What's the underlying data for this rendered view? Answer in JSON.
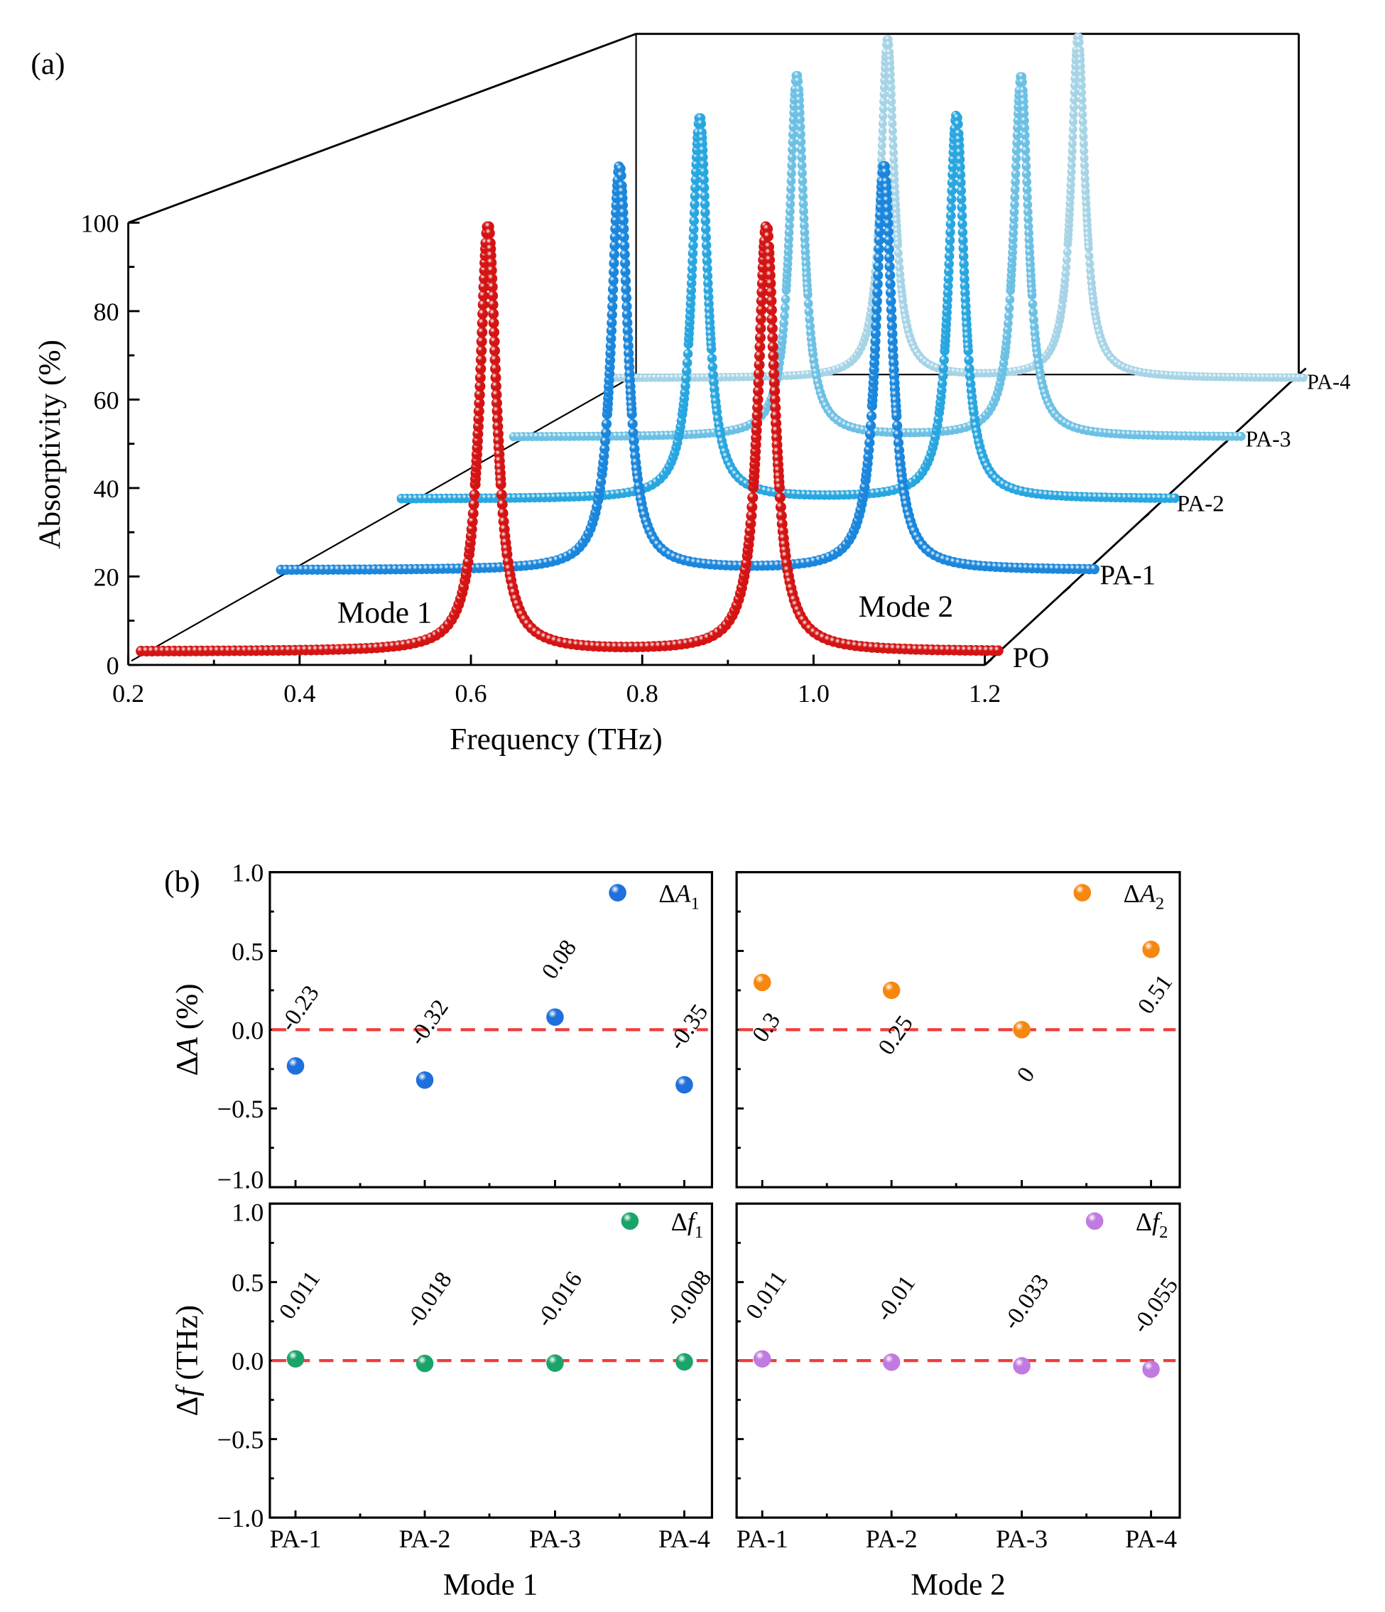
{
  "chart_data": [
    {
      "type": "line",
      "panel_label": "(a)",
      "title": "",
      "xlabel": "Frequency (THz)",
      "ylabel": "Absorptivity (%)",
      "xlim": [
        0.2,
        1.2
      ],
      "ylim": [
        0,
        100
      ],
      "xticks": [
        "0.2",
        "0.4",
        "0.6",
        "0.8",
        "1.0",
        "1.2"
      ],
      "yticks": [
        "0",
        "20",
        "40",
        "60",
        "80",
        "100"
      ],
      "annotations": [
        "Mode 1",
        "Mode 2"
      ],
      "freq_range": [
        0.215,
        1.22
      ],
      "linewidth_thz": 0.012,
      "baseline_percent": 3,
      "series": [
        {
          "name": "PO",
          "color": "#d41414",
          "peaks": [
            {
              "f": 0.62,
              "A": 99.6
            },
            {
              "f": 0.945,
              "A": 99.4
            }
          ]
        },
        {
          "name": "PA-1",
          "color": "#1a86dc",
          "peaks": [
            {
              "f": 0.631,
              "A": 99.37
            },
            {
              "f": 0.956,
              "A": 99.7
            }
          ]
        },
        {
          "name": "PA-2",
          "color": "#28a6e0",
          "peaks": [
            {
              "f": 0.602,
              "A": 99.28
            },
            {
              "f": 0.935,
              "A": 99.65
            }
          ]
        },
        {
          "name": "PA-3",
          "color": "#6cc0e4",
          "peaks": [
            {
              "f": 0.604,
              "A": 99.68
            },
            {
              "f": 0.912,
              "A": 99.4
            }
          ]
        },
        {
          "name": "PA-4",
          "color": "#a6d4e6",
          "peaks": [
            {
              "f": 0.612,
              "A": 99.25
            },
            {
              "f": 0.89,
              "A": 99.91
            }
          ]
        }
      ]
    },
    {
      "type": "scatter",
      "panel_label": "(b)",
      "categories": [
        "PA-1",
        "PA-2",
        "PA-3",
        "PA-4"
      ],
      "ylim": [
        -1.0,
        1.0
      ],
      "yticks": [
        "1.0",
        "0.5",
        "0.0",
        "−0.5",
        "−1.0"
      ],
      "row_ylabels": [
        {
          "prefix": "Δ",
          "var": "A",
          "suffix": " (%)"
        },
        {
          "prefix": "Δ",
          "var": "f",
          "suffix": " (THz)"
        }
      ],
      "col_xlabels": [
        "Mode 1",
        "Mode 2"
      ],
      "reference_line": {
        "y": 0,
        "color": "#f03c3c"
      },
      "panels": [
        {
          "legend": {
            "prefix": "Δ",
            "var": "A",
            "sub": "1"
          },
          "color": "#1f6fdc",
          "values": [
            -0.23,
            -0.32,
            0.08,
            -0.35
          ],
          "labels": [
            "-0.23",
            "-0.32",
            "0.08",
            "-0.35"
          ]
        },
        {
          "legend": {
            "prefix": "Δ",
            "var": "A",
            "sub": "2"
          },
          "color": "#f6870f",
          "values": [
            0.3,
            0.25,
            0.0,
            0.51
          ],
          "labels": [
            "0.3",
            "0.25",
            "0",
            "0.51"
          ]
        },
        {
          "legend": {
            "prefix": "Δ",
            "var": "f",
            "sub": "1"
          },
          "color": "#1aa46a",
          "values": [
            0.011,
            -0.018,
            -0.016,
            -0.008
          ],
          "labels": [
            "0.011",
            "-0.018",
            "-0.016",
            "-0.008"
          ]
        },
        {
          "legend": {
            "prefix": "Δ",
            "var": "f",
            "sub": "2"
          },
          "color": "#c07ae0",
          "values": [
            0.011,
            -0.01,
            -0.033,
            -0.055
          ],
          "labels": [
            "0.011",
            "-0.01",
            "-0.033",
            "-0.055"
          ]
        }
      ]
    }
  ]
}
